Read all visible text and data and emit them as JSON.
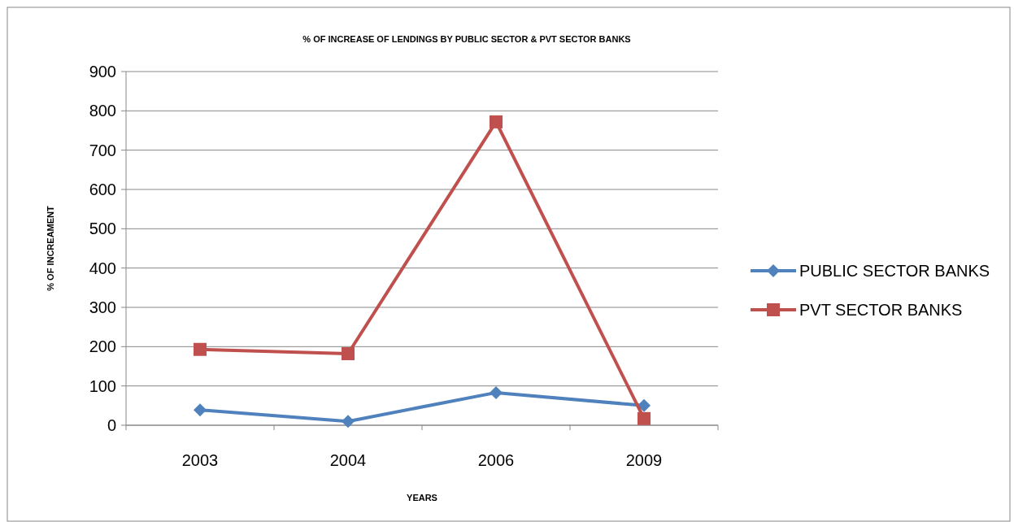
{
  "chart_data": {
    "type": "line",
    "title": "% OF INCREASE OF LENDINGS BY PUBLIC SECTOR & PVT SECTOR BANKS",
    "xlabel": "YEARS",
    "ylabel": "% OF INCREAMENT",
    "categories": [
      "2003",
      "2004",
      "2006",
      "2009"
    ],
    "series": [
      {
        "name": "PUBLIC SECTOR BANKS",
        "color": "#4f81bd",
        "marker": "diamond",
        "values": [
          39,
          10,
          83,
          50
        ]
      },
      {
        "name": "PVT SECTOR BANKS",
        "color": "#c0504d",
        "marker": "square",
        "values": [
          193,
          182,
          772,
          17
        ]
      }
    ],
    "ylim": [
      0,
      900
    ],
    "yticks": [
      0,
      100,
      200,
      300,
      400,
      500,
      600,
      700,
      800,
      900
    ],
    "grid": "y",
    "legend": "right"
  }
}
